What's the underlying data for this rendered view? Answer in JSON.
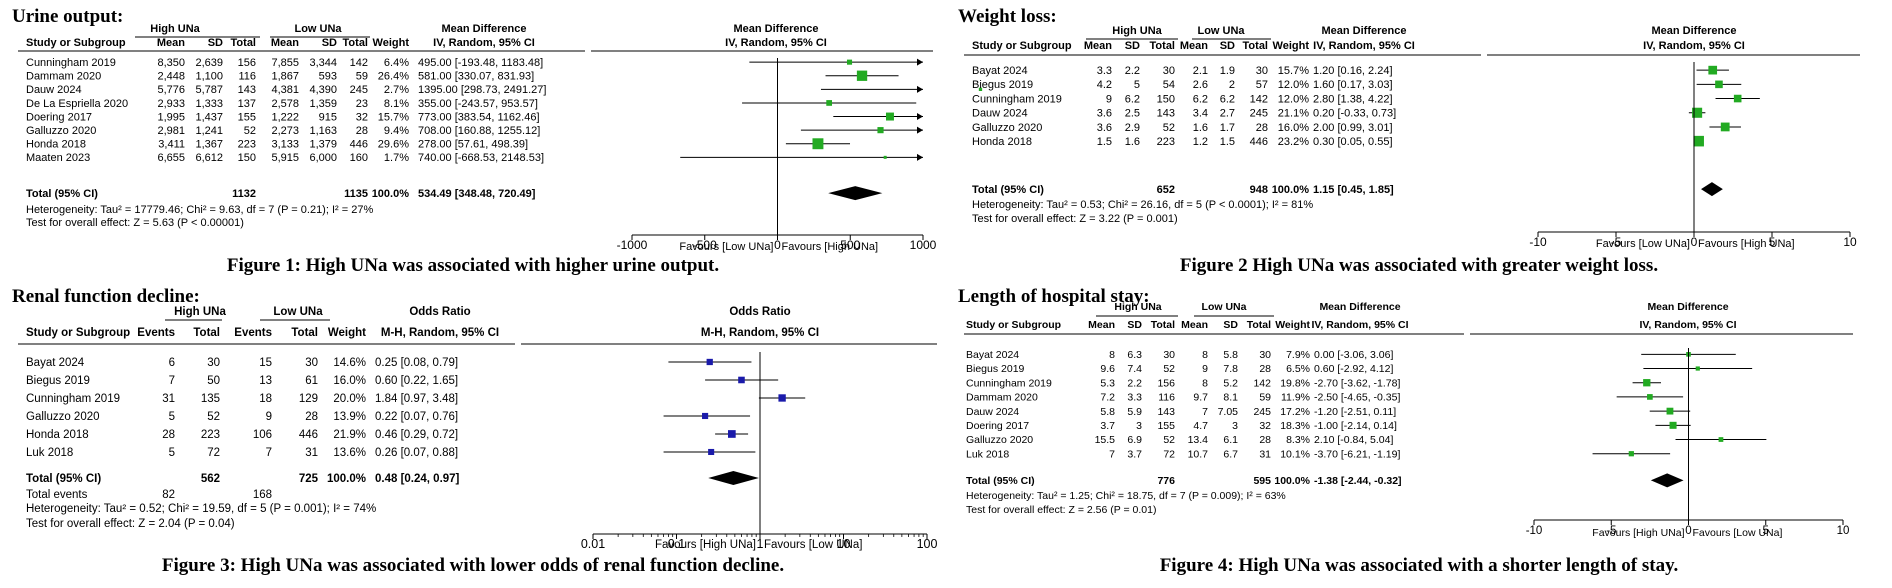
{
  "chart_data": [
    {
      "type": "forest",
      "title": "Urine output:",
      "caption": "Figure 1: High UNa was associated with higher urine output.",
      "group1": "High UNa",
      "group2": "Low UNa",
      "headers": [
        "Study or Subgroup",
        "Mean",
        "SD",
        "Total",
        "Mean",
        "SD",
        "Total",
        "Weight",
        "IV, Random, 95% CI"
      ],
      "effect_header": "Mean Difference",
      "plot_header": [
        "Mean Difference",
        "IV, Random, 95% CI"
      ],
      "rows": [
        {
          "cells": [
            "Cunningham 2019",
            "8,350",
            "2,639",
            "156",
            "7,855",
            "3,344",
            "142",
            "6.4%",
            "495.00 [-193.48, 1183.48]"
          ],
          "est": 495,
          "lo": -193.48,
          "hi": 1183.48,
          "w": 6.4
        },
        {
          "cells": [
            "Dammam 2020",
            "2,448",
            "1,100",
            "116",
            "1,867",
            "593",
            "59",
            "26.4%",
            "581.00 [330.07, 831.93]"
          ],
          "est": 581,
          "lo": 330.07,
          "hi": 831.93,
          "w": 26.4
        },
        {
          "cells": [
            "Dauw 2024",
            "5,776",
            "5,787",
            "143",
            "4,381",
            "4,390",
            "245",
            "2.7%",
            "1395.00 [298.73, 2491.27]"
          ],
          "est": 1395,
          "lo": 298.73,
          "hi": 2491.27,
          "w": 2.7
        },
        {
          "cells": [
            "De La Espriella 2020",
            "2,933",
            "1,333",
            "137",
            "2,578",
            "1,359",
            "23",
            "8.1%",
            "355.00 [-243.57, 953.57]"
          ],
          "est": 355,
          "lo": -243.57,
          "hi": 953.57,
          "w": 8.1
        },
        {
          "cells": [
            "Doering 2017",
            "1,995",
            "1,437",
            "155",
            "1,222",
            "915",
            "32",
            "15.7%",
            "773.00 [383.54, 1162.46]"
          ],
          "est": 773,
          "lo": 383.54,
          "hi": 1162.46,
          "w": 15.7
        },
        {
          "cells": [
            "Galluzzo 2020",
            "2,981",
            "1,241",
            "52",
            "2,273",
            "1,163",
            "28",
            "9.4%",
            "708.00 [160.88, 1255.12]"
          ],
          "est": 708,
          "lo": 160.88,
          "hi": 1255.12,
          "w": 9.4
        },
        {
          "cells": [
            "Honda 2018",
            "3,411",
            "1,367",
            "223",
            "3,133",
            "1,379",
            "446",
            "29.6%",
            "278.00 [57.61, 498.39]"
          ],
          "est": 278,
          "lo": 57.61,
          "hi": 498.39,
          "w": 29.6
        },
        {
          "cells": [
            "Maaten 2023",
            "6,655",
            "6,612",
            "150",
            "5,915",
            "6,000",
            "160",
            "1.7%",
            "740.00 [-668.53, 2148.53]"
          ],
          "est": 740,
          "lo": -668.53,
          "hi": 2148.53,
          "w": 1.7
        }
      ],
      "total": {
        "cells": [
          "Total (95% CI)",
          "",
          "",
          "1132",
          "",
          "",
          "1135",
          "100.0%",
          "534.49 [348.48, 720.49]"
        ],
        "est": 534.49,
        "lo": 348.48,
        "hi": 720.49
      },
      "notes": [
        "Heterogeneity: Tau² = 17779.46; Chi² = 9.63, df = 7 (P = 0.21); I² = 27%",
        "Test for overall effect: Z = 5.63 (P < 0.00001)"
      ],
      "scale": "linear",
      "xlim": [
        -1000,
        1000
      ],
      "ticks": [
        -1000,
        -500,
        0,
        500,
        1000
      ],
      "tick_labels": [
        "-1000",
        "-500",
        "0",
        "500",
        "1000"
      ],
      "favours": [
        "Favours [Low UNa]",
        "Favours [High UNa]"
      ],
      "marker_color": "#22aa22"
    },
    {
      "type": "forest",
      "title": "Weight loss:",
      "caption": "Figure 2 High UNa was associated with greater weight loss.",
      "group1": "High UNa",
      "group2": "Low UNa",
      "headers": [
        "Study or Subgroup",
        "Mean",
        "SD",
        "Total",
        "Mean",
        "SD",
        "Total",
        "Weight",
        "IV, Random, 95% CI"
      ],
      "effect_header": "Mean Difference",
      "plot_header": [
        "Mean Difference",
        "IV, Random, 95% CI"
      ],
      "rows": [
        {
          "cells": [
            "Bayat 2024",
            "3.3",
            "2.2",
            "30",
            "2.1",
            "1.9",
            "30",
            "15.7%",
            "1.20 [0.16, 2.24]"
          ],
          "est": 1.2,
          "lo": 0.16,
          "hi": 2.24,
          "w": 15.7
        },
        {
          "cells": [
            "Biegus 2019",
            "4.2",
            "5",
            "54",
            "2.6",
            "2",
            "57",
            "12.0%",
            "1.60 [0.17, 3.03]"
          ],
          "est": 1.6,
          "lo": 0.17,
          "hi": 3.03,
          "w": 12.0
        },
        {
          "cells": [
            "Cunningham 2019",
            "9",
            "6.2",
            "150",
            "6.2",
            "6.2",
            "142",
            "12.0%",
            "2.80 [1.38, 4.22]"
          ],
          "est": 2.8,
          "lo": 1.38,
          "hi": 4.22,
          "w": 12.0
        },
        {
          "cells": [
            "Dauw 2024",
            "3.6",
            "2.5",
            "143",
            "3.4",
            "2.7",
            "245",
            "21.1%",
            "0.20 [-0.33, 0.73]"
          ],
          "est": 0.2,
          "lo": -0.33,
          "hi": 0.73,
          "w": 21.1
        },
        {
          "cells": [
            "Galluzzo 2020",
            "3.6",
            "2.9",
            "52",
            "1.6",
            "1.7",
            "28",
            "16.0%",
            "2.00 [0.99, 3.01]"
          ],
          "est": 2.0,
          "lo": 0.99,
          "hi": 3.01,
          "w": 16.0
        },
        {
          "cells": [
            "Honda 2018",
            "1.5",
            "1.6",
            "223",
            "1.2",
            "1.5",
            "446",
            "23.2%",
            "0.30 [0.05, 0.55]"
          ],
          "est": 0.3,
          "lo": 0.05,
          "hi": 0.55,
          "w": 23.2
        }
      ],
      "total": {
        "cells": [
          "Total (95% CI)",
          "",
          "",
          "652",
          "",
          "",
          "948",
          "100.0%",
          "1.15 [0.45, 1.85]"
        ],
        "est": 1.15,
        "lo": 0.45,
        "hi": 1.85
      },
      "notes": [
        "Heterogeneity: Tau² = 0.53; Chi² = 26.16, df = 5 (P < 0.0001); I² = 81%",
        "Test for overall effect: Z = 3.22 (P = 0.001)"
      ],
      "scale": "linear",
      "xlim": [
        -10,
        10
      ],
      "ticks": [
        -10,
        -5,
        0,
        5,
        10
      ],
      "tick_labels": [
        "-10",
        "-5",
        "0",
        "5",
        "10"
      ],
      "favours": [
        "Favours [Low UNa]",
        "Favours [High UNa]"
      ],
      "marker_color": "#22aa22"
    },
    {
      "type": "forest",
      "title": "Renal function decline:",
      "caption": "Figure 3: High UNa was associated with lower odds of renal function decline.",
      "group1": "High UNa",
      "group2": "Low UNa",
      "headers": [
        "Study or Subgroup",
        "Events",
        "Total",
        "Events",
        "Total",
        "Weight",
        "M-H, Random, 95% CI"
      ],
      "effect_header": "Odds Ratio",
      "plot_header": [
        "Odds Ratio",
        "M-H, Random, 95% CI"
      ],
      "rows": [
        {
          "cells": [
            "Bayat 2024",
            "6",
            "30",
            "15",
            "30",
            "14.6%",
            "0.25 [0.08, 0.79]"
          ],
          "est": 0.25,
          "lo": 0.08,
          "hi": 0.79,
          "w": 14.6
        },
        {
          "cells": [
            "Biegus 2019",
            "7",
            "50",
            "13",
            "61",
            "16.0%",
            "0.60 [0.22, 1.65]"
          ],
          "est": 0.6,
          "lo": 0.22,
          "hi": 1.65,
          "w": 16.0
        },
        {
          "cells": [
            "Cunningham 2019",
            "31",
            "135",
            "18",
            "129",
            "20.0%",
            "1.84 [0.97, 3.48]"
          ],
          "est": 1.84,
          "lo": 0.97,
          "hi": 3.48,
          "w": 20.0
        },
        {
          "cells": [
            "Galluzzo 2020",
            "5",
            "52",
            "9",
            "28",
            "13.9%",
            "0.22 [0.07, 0.76]"
          ],
          "est": 0.22,
          "lo": 0.07,
          "hi": 0.76,
          "w": 13.9
        },
        {
          "cells": [
            "Honda 2018",
            "28",
            "223",
            "106",
            "446",
            "21.9%",
            "0.46 [0.29, 0.72]"
          ],
          "est": 0.46,
          "lo": 0.29,
          "hi": 0.72,
          "w": 21.9
        },
        {
          "cells": [
            "Luk 2018",
            "5",
            "72",
            "7",
            "31",
            "13.6%",
            "0.26 [0.07, 0.88]"
          ],
          "est": 0.26,
          "lo": 0.07,
          "hi": 0.88,
          "w": 13.6
        }
      ],
      "total": {
        "cells": [
          "Total (95% CI)",
          "",
          "562",
          "",
          "725",
          "100.0%",
          "0.48 [0.24, 0.97]"
        ],
        "est": 0.48,
        "lo": 0.24,
        "hi": 0.97
      },
      "events_row": [
        "Total events",
        "82",
        "",
        "168"
      ],
      "notes": [
        "Heterogeneity: Tau² = 0.52; Chi² = 19.59, df = 5 (P = 0.001); I² = 74%",
        "Test for overall effect: Z = 2.04 (P = 0.04)"
      ],
      "scale": "log",
      "xlim": [
        0.01,
        100
      ],
      "ticks": [
        0.01,
        0.1,
        1,
        10,
        100
      ],
      "tick_labels": [
        "0.01",
        "0.1",
        "1",
        "10",
        "100"
      ],
      "favours": [
        "Favours [High UNa]",
        "Favours [Low UNa]"
      ],
      "marker_color": "#1a1aaa"
    },
    {
      "type": "forest",
      "title": "Length of hospital stay:",
      "caption": "Figure 4: High UNa was associated with a shorter length of stay.",
      "group1": "High UNa",
      "group2": "Low UNa",
      "headers": [
        "Study or Subgroup",
        "Mean",
        "SD",
        "Total",
        "Mean",
        "SD",
        "Total",
        "Weight",
        "IV, Random, 95% CI"
      ],
      "effect_header": "Mean Difference",
      "plot_header": [
        "Mean Difference",
        "IV, Random, 95% CI"
      ],
      "rows": [
        {
          "cells": [
            "Bayat 2024",
            "8",
            "6.3",
            "30",
            "8",
            "5.8",
            "30",
            "7.9%",
            "0.00 [-3.06, 3.06]"
          ],
          "est": 0.0,
          "lo": -3.06,
          "hi": 3.06,
          "w": 7.9
        },
        {
          "cells": [
            "Biegus 2019",
            "9.6",
            "7.4",
            "52",
            "9",
            "7.8",
            "28",
            "6.5%",
            "0.60 [-2.92, 4.12]"
          ],
          "est": 0.6,
          "lo": -2.92,
          "hi": 4.12,
          "w": 6.5
        },
        {
          "cells": [
            "Cunningham 2019",
            "5.3",
            "2.2",
            "156",
            "8",
            "5.2",
            "142",
            "19.8%",
            "-2.70 [-3.62, -1.78]"
          ],
          "est": -2.7,
          "lo": -3.62,
          "hi": -1.78,
          "w": 19.8
        },
        {
          "cells": [
            "Dammam 2020",
            "7.2",
            "3.3",
            "116",
            "9.7",
            "8.1",
            "59",
            "11.9%",
            "-2.50 [-4.65, -0.35]"
          ],
          "est": -2.5,
          "lo": -4.65,
          "hi": -0.35,
          "w": 11.9
        },
        {
          "cells": [
            "Dauw 2024",
            "5.8",
            "5.9",
            "143",
            "7",
            "7.05",
            "245",
            "17.2%",
            "-1.20 [-2.51, 0.11]"
          ],
          "est": -1.2,
          "lo": -2.51,
          "hi": 0.11,
          "w": 17.2
        },
        {
          "cells": [
            "Doering 2017",
            "3.7",
            "3",
            "155",
            "4.7",
            "3",
            "32",
            "18.3%",
            "-1.00 [-2.14, 0.14]"
          ],
          "est": -1.0,
          "lo": -2.14,
          "hi": 0.14,
          "w": 18.3
        },
        {
          "cells": [
            "Galluzzo 2020",
            "15.5",
            "6.9",
            "52",
            "13.4",
            "6.1",
            "28",
            "8.3%",
            "2.10 [-0.84, 5.04]"
          ],
          "est": 2.1,
          "lo": -0.84,
          "hi": 5.04,
          "w": 8.3
        },
        {
          "cells": [
            "Luk 2018",
            "7",
            "3.7",
            "72",
            "10.7",
            "6.7",
            "31",
            "10.1%",
            "-3.70 [-6.21, -1.19]"
          ],
          "est": -3.7,
          "lo": -6.21,
          "hi": -1.19,
          "w": 10.1
        }
      ],
      "total": {
        "cells": [
          "Total (95% CI)",
          "",
          "",
          "776",
          "",
          "",
          "595",
          "100.0%",
          "-1.38 [-2.44, -0.32]"
        ],
        "est": -1.38,
        "lo": -2.44,
        "hi": -0.32
      },
      "notes": [
        "Heterogeneity: Tau² = 1.25; Chi² = 18.75, df = 7 (P = 0.009); I² = 63%",
        "Test for overall effect: Z = 2.56 (P = 0.01)"
      ],
      "scale": "linear",
      "xlim": [
        -10,
        10
      ],
      "ticks": [
        -10,
        -5,
        0,
        5,
        10
      ],
      "tick_labels": [
        "-10",
        "-5",
        "0",
        "5",
        "10"
      ],
      "favours": [
        "Favours [High UNa]",
        "Favours [Low UNa]"
      ],
      "marker_color": "#22aa22"
    }
  ]
}
